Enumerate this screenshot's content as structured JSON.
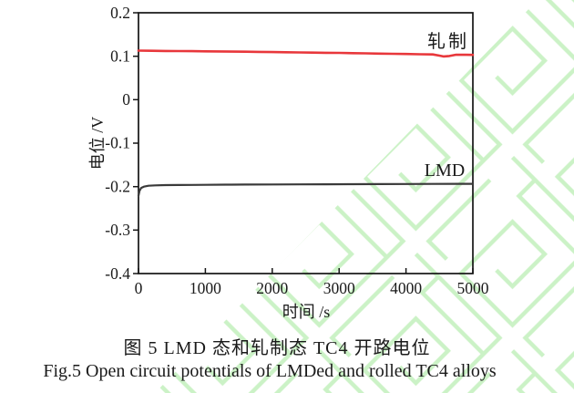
{
  "page": {
    "background": "#ffffff",
    "watermark_color": "#cbf2c6"
  },
  "chart_data": {
    "type": "line",
    "title": "",
    "xlabel": "时间 /s",
    "ylabel": "电位 /V",
    "xlim": [
      0,
      5000
    ],
    "ylim": [
      -0.4,
      0.2
    ],
    "grid": false,
    "legend_position": "inline-annotations",
    "x_tick_labels": [
      "0",
      "1000",
      "2000",
      "3000",
      "4000",
      "5000"
    ],
    "y_tick_labels": [
      "0.2",
      "0.1",
      "0",
      "-0.1",
      "-0.2",
      "-0.3",
      "-0.4"
    ],
    "series": [
      {
        "name": "轧制",
        "color": "#e8373b",
        "x": [
          0,
          200,
          400,
          600,
          800,
          1000,
          1200,
          1400,
          1600,
          1800,
          2000,
          2200,
          2400,
          2600,
          2800,
          3000,
          3200,
          3400,
          3600,
          3800,
          4000,
          4200,
          4400,
          4500,
          4560,
          4650,
          4750,
          4900,
          5000
        ],
        "y": [
          0.113,
          0.1126,
          0.1122,
          0.1119,
          0.1116,
          0.1113,
          0.111,
          0.1107,
          0.1104,
          0.11,
          0.1096,
          0.1092,
          0.1088,
          0.1084,
          0.108,
          0.1076,
          0.1071,
          0.1066,
          0.1061,
          0.1056,
          0.1051,
          0.1046,
          0.1041,
          0.1015,
          0.0995,
          0.1005,
          0.1035,
          0.1033,
          0.103
        ]
      },
      {
        "name": "LMD",
        "color": "#3a3a3a",
        "x": [
          0,
          15,
          40,
          80,
          150,
          250,
          400,
          600,
          800,
          1000,
          1300,
          1600,
          2000,
          2400,
          2800,
          3200,
          3600,
          4000,
          4400,
          4800,
          5000
        ],
        "y": [
          -0.221,
          -0.21,
          -0.203,
          -0.2,
          -0.198,
          -0.1972,
          -0.1966,
          -0.1962,
          -0.196,
          -0.1958,
          -0.1955,
          -0.1952,
          -0.195,
          -0.1948,
          -0.1946,
          -0.1944,
          -0.1942,
          -0.194,
          -0.1938,
          -0.1936,
          -0.1935
        ]
      }
    ]
  },
  "caption": {
    "zh": "图 5  LMD 态和轧制态 TC4 开路电位",
    "en": "Fig.5  Open circuit potentials of LMDed and rolled TC4 alloys"
  }
}
